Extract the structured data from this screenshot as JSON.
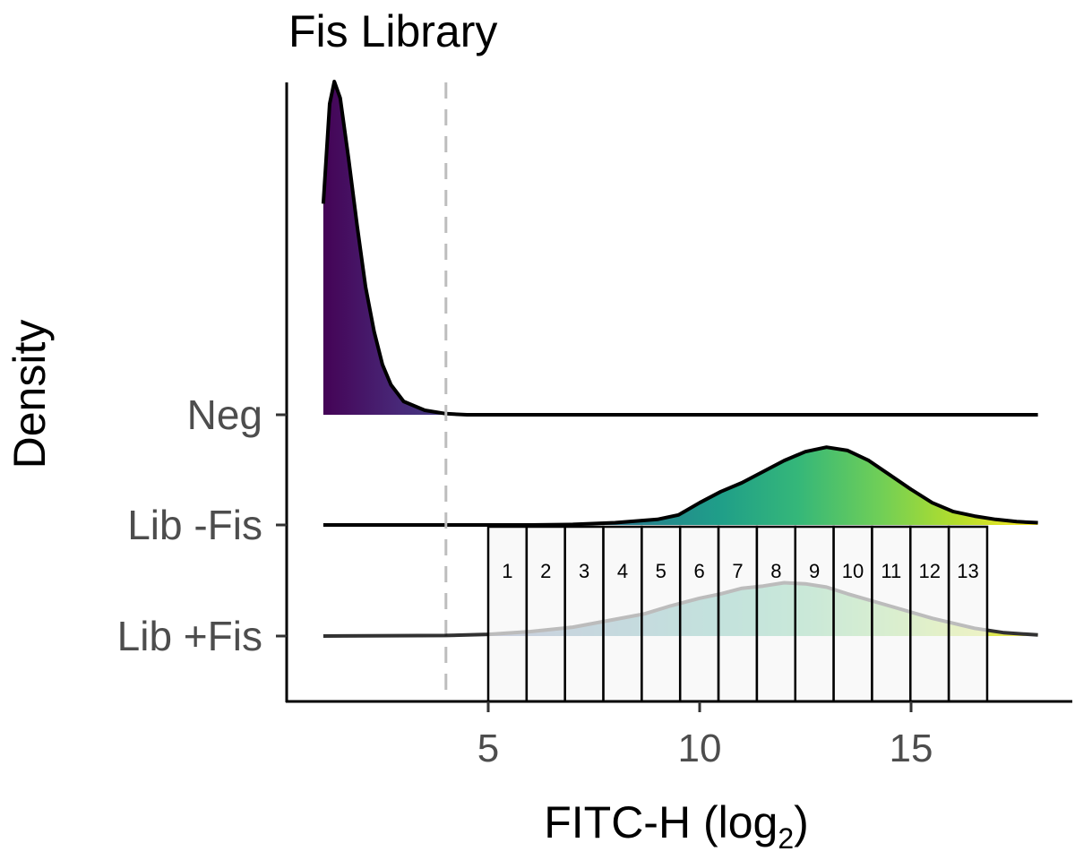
{
  "chart_data": {
    "type": "ridgeline-density",
    "title": "Fis Library",
    "xlabel": "FITC-H (log",
    "xlabel_sub": "2",
    "xlabel_close": ")",
    "ylabel": "Density",
    "xlim": [
      1,
      18
    ],
    "xticks": [
      5,
      10,
      15
    ],
    "threshold_line": 4,
    "series": [
      {
        "name": "Neg",
        "points": [
          [
            1.1,
            1.9
          ],
          [
            1.25,
            2.8
          ],
          [
            1.36,
            3.0
          ],
          [
            1.5,
            2.85
          ],
          [
            1.7,
            2.3
          ],
          [
            1.9,
            1.7
          ],
          [
            2.1,
            1.15
          ],
          [
            2.3,
            0.75
          ],
          [
            2.5,
            0.45
          ],
          [
            2.7,
            0.27
          ],
          [
            3.0,
            0.12
          ],
          [
            3.5,
            0.04
          ],
          [
            4.0,
            0.01
          ],
          [
            4.5,
            0.0
          ],
          [
            18,
            0.0
          ]
        ]
      },
      {
        "name": "Lib -Fis",
        "points": [
          [
            1.1,
            0
          ],
          [
            6,
            0
          ],
          [
            7,
            0.005
          ],
          [
            8,
            0.02
          ],
          [
            9,
            0.05
          ],
          [
            9.5,
            0.09
          ],
          [
            10,
            0.2
          ],
          [
            10.5,
            0.3
          ],
          [
            11,
            0.38
          ],
          [
            11.5,
            0.48
          ],
          [
            12,
            0.58
          ],
          [
            12.5,
            0.66
          ],
          [
            13,
            0.7
          ],
          [
            13.5,
            0.67
          ],
          [
            14,
            0.58
          ],
          [
            14.5,
            0.45
          ],
          [
            15,
            0.32
          ],
          [
            15.5,
            0.2
          ],
          [
            16,
            0.12
          ],
          [
            16.5,
            0.08
          ],
          [
            17,
            0.05
          ],
          [
            17.5,
            0.03
          ],
          [
            18,
            0.02
          ]
        ]
      },
      {
        "name": "Lib +Fis",
        "points": [
          [
            1.1,
            0
          ],
          [
            4,
            0.005
          ],
          [
            5,
            0.015
          ],
          [
            6,
            0.04
          ],
          [
            7,
            0.08
          ],
          [
            8,
            0.15
          ],
          [
            8.7,
            0.2
          ],
          [
            9.3,
            0.27
          ],
          [
            10,
            0.34
          ],
          [
            10.5,
            0.38
          ],
          [
            11,
            0.43
          ],
          [
            11.5,
            0.45
          ],
          [
            12,
            0.48
          ],
          [
            12.5,
            0.47
          ],
          [
            13,
            0.44
          ],
          [
            13.5,
            0.38
          ],
          [
            14.5,
            0.27
          ],
          [
            15.5,
            0.16
          ],
          [
            16.5,
            0.07
          ],
          [
            17.2,
            0.03
          ],
          [
            18,
            0.01
          ]
        ]
      }
    ],
    "bins": {
      "start": 5,
      "end": 16.8,
      "labels": [
        "1",
        "2",
        "3",
        "4",
        "5",
        "6",
        "7",
        "8",
        "9",
        "10",
        "11",
        "12",
        "13"
      ]
    },
    "colors": {
      "viridis": [
        "#440154",
        "#482878",
        "#3e4989",
        "#31688e",
        "#26828e",
        "#1f9e89",
        "#35b779",
        "#6ece58",
        "#b5de2b",
        "#fde725"
      ],
      "threshold": "#bdbdbd",
      "bin_fill": "#f7f7f7"
    }
  }
}
